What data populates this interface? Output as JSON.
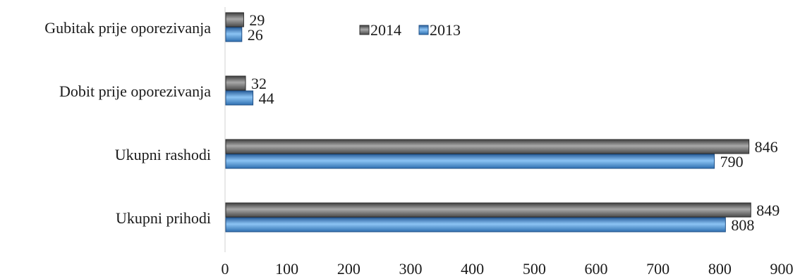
{
  "chart_data": {
    "type": "bar",
    "orientation": "horizontal",
    "categories": [
      "Gubitak prije oporezivanja",
      "Dobit prije oporezivanja",
      "Ukupni rashodi",
      "Ukupni prihodi"
    ],
    "series": [
      {
        "name": "2014",
        "values": [
          29,
          32,
          846,
          849
        ],
        "color": "#6b6b6b"
      },
      {
        "name": "2013",
        "values": [
          26,
          44,
          790,
          808
        ],
        "color": "#4a8fd6"
      }
    ],
    "xlim": [
      0,
      900
    ],
    "xticks": [
      "0",
      "100",
      "200",
      "300",
      "400",
      "500",
      "600",
      "700",
      "800",
      "900"
    ],
    "legend_position": "top",
    "grid": false
  }
}
